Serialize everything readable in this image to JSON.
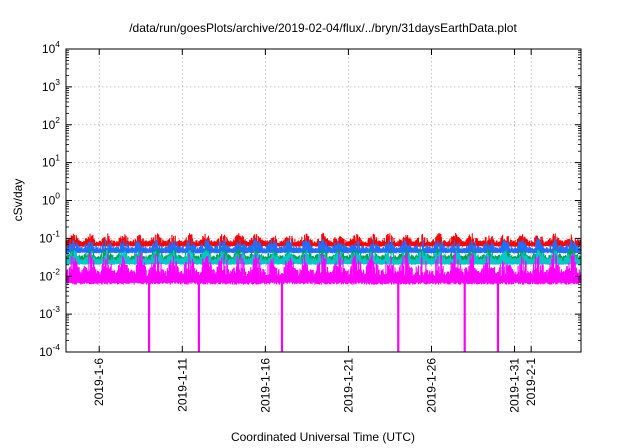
{
  "chart_data": {
    "type": "line",
    "title": "/data/run/goesPlots/archive/2019-02-04/flux/../bryn/31daysEarthData.plot",
    "xlabel": "Coordinated Universal Time (UTC)",
    "ylabel": "cSv/day",
    "yscale": "log",
    "ylim": [
      0.0001,
      10000
    ],
    "xlim": [
      "2019-01-04",
      "2019-02-04"
    ],
    "grid": true,
    "x_ticks": [
      "2019-1-6",
      "2019-1-11",
      "2019-1-16",
      "2019-1-21",
      "2019-1-26",
      "2019-1-31",
      "2019-2-1"
    ],
    "y_ticks": [
      {
        "base": "10",
        "exp": "-4"
      },
      {
        "base": "10",
        "exp": "-3"
      },
      {
        "base": "10",
        "exp": "-2"
      },
      {
        "base": "10",
        "exp": "-1"
      },
      {
        "base": "10",
        "exp": "0"
      },
      {
        "base": "10",
        "exp": "1"
      },
      {
        "base": "10",
        "exp": "2"
      },
      {
        "base": "10",
        "exp": "3"
      },
      {
        "base": "10",
        "exp": "4"
      }
    ],
    "series": [
      {
        "color": "#ff0000",
        "band": [
          0.06,
          0.14
        ]
      },
      {
        "color": "#1e6fff",
        "band": [
          0.04,
          0.1
        ]
      },
      {
        "color": "#00a050",
        "band": [
          0.025,
          0.055
        ]
      },
      {
        "color": "#00c8c8",
        "band": [
          0.02,
          0.05
        ]
      },
      {
        "color": "#ff00ff",
        "band": [
          0.006,
          0.045
        ]
      }
    ],
    "dips": [
      {
        "date": "2019-01-09",
        "min": 0.0001
      },
      {
        "date": "2019-01-12",
        "min": 0.0001
      },
      {
        "date": "2019-01-17",
        "min": 0.0001
      },
      {
        "date": "2019-01-24",
        "min": 0.0001
      },
      {
        "date": "2019-01-28",
        "min": 0.0001
      },
      {
        "date": "2019-01-30",
        "min": 0.0001
      }
    ]
  }
}
